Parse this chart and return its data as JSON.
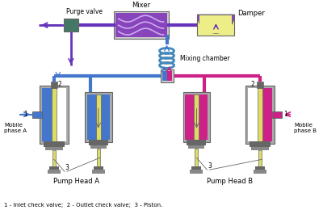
{
  "bg_color": "#ffffff",
  "colors": {
    "blue": "#4477cc",
    "magenta": "#cc2288",
    "purple": "#6633bb",
    "gray_body": "#aaaaaa",
    "gray_dark": "#666666",
    "gray_mid": "#888888",
    "gray_light": "#cccccc",
    "yellow": "#dddd66",
    "teal": "#447766",
    "mixer_fill": "#8844bb",
    "damper_yellow": "#eeee88",
    "coil_color": "#4488bb",
    "white": "#ffffff"
  },
  "labels": {
    "purge_valve": "Purge valve",
    "mixer": "Mixer",
    "damper": "Damper",
    "mixing_chamber": "Mixing chamber",
    "pump_a": "Pump Head A",
    "pump_b": "Pump Head B",
    "mobile_a": "Mobile\nphase A",
    "mobile_b": "Mobile\nphase B",
    "legend": "1 - Inlet check valve;  2 - Outlet check valve;  3 - Piston.",
    "n1": "1",
    "n2": "2",
    "n3": "3"
  }
}
